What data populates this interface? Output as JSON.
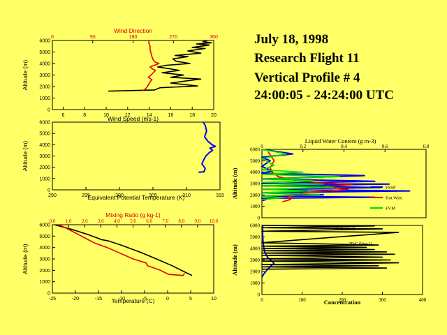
{
  "title_block": {
    "date": "July 18, 1998",
    "flight": "Research Flight 11",
    "profile": "Vertical Profile # 4",
    "time_range": "24:00:05 - 24:24:00 UTC"
  },
  "colors": {
    "background": "#ffff66",
    "red": "#e00000",
    "blue": "#0000ee",
    "green": "#00dd00",
    "black": "#000000"
  },
  "chart_data": [
    {
      "id": "wind",
      "type": "line",
      "title": "Wind Direction",
      "xlabel": "Wind Speed (ms-1)",
      "ylabel": "Altitude (m)",
      "xlim": [
        5,
        20
      ],
      "ylim": [
        0,
        6000
      ],
      "xticks": [
        6,
        8,
        10,
        12,
        14,
        16,
        18,
        20
      ],
      "yticks": [
        0,
        1000,
        2000,
        3000,
        4000,
        5000,
        6000
      ],
      "top_axis": {
        "lim": [
          0,
          360
        ],
        "ticks": [
          0,
          90,
          180,
          270,
          360
        ]
      },
      "series": [
        {
          "name": "Wind Speed",
          "color": "#000000",
          "axis": "bottom",
          "x": [
            10.2,
            14.5,
            15.0,
            18.5,
            16.0,
            17.5,
            18.8,
            16.0,
            17.2,
            15.2,
            16.8,
            15.5,
            14.8,
            15.6,
            17.8,
            16.5,
            16.2,
            17.6,
            16.4,
            18.8,
            17.6,
            19.2,
            18.0,
            19.6,
            18.4,
            19.8,
            19.0,
            19.4
          ],
          "y": [
            1600,
            1700,
            1900,
            2050,
            2300,
            2500,
            2650,
            2800,
            3000,
            3200,
            3400,
            3600,
            3700,
            3850,
            4000,
            4200,
            4400,
            4600,
            4700,
            4900,
            5100,
            5300,
            5400,
            5600,
            5700,
            5800,
            5900,
            6000
          ]
        },
        {
          "name": "Wind Direction",
          "color": "#e00000",
          "axis": "top",
          "x": [
            200,
            208,
            212,
            215,
            218,
            222,
            214,
            220,
            225,
            230,
            222,
            218,
            224,
            232,
            238,
            230,
            225,
            222,
            220,
            218,
            218,
            215,
            216
          ],
          "y": [
            1600,
            1800,
            2000,
            2200,
            2400,
            2600,
            2800,
            3000,
            3200,
            3400,
            3550,
            3700,
            3800,
            3900,
            4000,
            4100,
            4300,
            4600,
            4900,
            5200,
            5500,
            5800,
            6000
          ]
        }
      ]
    },
    {
      "id": "theta_e",
      "type": "line",
      "xlabel": "Equivalent Potential Temperature (K)",
      "ylabel": "Altitude (m)",
      "xlim": [
        290,
        315
      ],
      "ylim": [
        0,
        6000
      ],
      "xticks": [
        290,
        295,
        300,
        305,
        310,
        315
      ],
      "yticks": [
        0,
        1000,
        2000,
        3000,
        4000,
        5000,
        6000
      ],
      "series": [
        {
          "name": "Theta-E",
          "color": "#0000ee",
          "x": [
            311.8,
            312.6,
            312.8,
            312.3,
            312.6,
            312.9,
            313.4,
            313.9,
            313.5,
            314.3,
            313.8,
            313.2,
            312.7,
            313.0,
            312.8,
            312.5
          ],
          "y": [
            1550,
            1600,
            1900,
            2300,
            2700,
            3000,
            3300,
            3500,
            3700,
            3850,
            4000,
            4300,
            4700,
            5200,
            5700,
            6000
          ]
        }
      ]
    },
    {
      "id": "temp_mr",
      "type": "line",
      "xlabel": "Temperature (C)",
      "ylabel": "Altitude (m)",
      "xlim": [
        -25,
        10
      ],
      "ylim": [
        0,
        6000
      ],
      "xticks": [
        -25,
        -20,
        -15,
        -10,
        -5,
        0,
        5,
        10
      ],
      "yticks": [
        0,
        1000,
        2000,
        3000,
        4000,
        5000,
        6000
      ],
      "top_axis": {
        "label": "Mixing Ratio (g kg-1)",
        "lim": [
          0,
          10
        ],
        "ticks": [
          0.0,
          1.0,
          2.0,
          3.0,
          4.0,
          5.0,
          6.0,
          7.0,
          8.0,
          9.0,
          10.0
        ]
      },
      "series": [
        {
          "name": "Temperature",
          "color": "#000000",
          "axis": "bottom",
          "x": [
            -24.5,
            -20,
            -17,
            -15,
            -14.5,
            -13,
            -10,
            -6,
            -3,
            1,
            4,
            5.3
          ],
          "y": [
            6000,
            5500,
            5100,
            4800,
            4700,
            4600,
            4200,
            3600,
            3100,
            2400,
            1800,
            1550
          ]
        },
        {
          "name": "Mixing Ratio",
          "color": "#e00000",
          "axis": "top",
          "x": [
            0.4,
            1.0,
            1.8,
            2.6,
            3.4,
            4.2,
            5.0,
            5.8,
            5.9,
            6.7,
            7.2,
            8.1,
            8.2
          ],
          "y": [
            6000,
            5600,
            5000,
            4400,
            4000,
            3500,
            3000,
            2650,
            2400,
            2000,
            1650,
            1550,
            1750
          ]
        }
      ]
    },
    {
      "id": "lwc",
      "type": "line",
      "title": "Liquid Water Content (g m-3)",
      "ylabel": "Altitude (m)",
      "xlim": [
        0,
        0.8
      ],
      "ylim": [
        0,
        6000
      ],
      "xticks": [
        0,
        0.2,
        0.4,
        0.6,
        0.8
      ],
      "xticklabels": [
        "0",
        "0.2",
        "0.4",
        "0.6",
        "0.8"
      ],
      "yticks": [
        0,
        1000,
        2000,
        3000,
        4000,
        5000,
        6000
      ],
      "legend": [
        "FSSP",
        "Hot Wire",
        "FVM"
      ],
      "series": [
        {
          "name": "FSSP",
          "color": "#0000ee",
          "x": [
            0,
            0.02,
            0,
            0.55,
            0,
            0.3,
            0,
            0.72,
            0,
            0.58,
            0,
            0.62,
            0,
            0.55,
            0,
            0.5,
            0,
            0.05,
            0,
            0.04,
            0,
            0.15,
            0
          ],
          "y": [
            1500,
            1600,
            1700,
            1800,
            1900,
            2000,
            2200,
            2350,
            2500,
            2650,
            2800,
            2950,
            3000,
            3200,
            3400,
            3700,
            3900,
            4100,
            4500,
            5000,
            5300,
            5600,
            6000
          ]
        },
        {
          "name": "Hot Wire",
          "color": "#e00000",
          "x": [
            0.1,
            0.14,
            0.12,
            0.17,
            0.2,
            0.42,
            0.3,
            0.44,
            0.36,
            0.18,
            0.08,
            0.05,
            0.04,
            0.06,
            0.03
          ],
          "y": [
            1400,
            1600,
            1800,
            2000,
            2200,
            2500,
            2700,
            2900,
            3000,
            3200,
            3600,
            4000,
            4400,
            5000,
            5800
          ]
        },
        {
          "name": "FVM",
          "color": "#00dd00",
          "x": [
            0,
            0.1,
            0,
            0.28,
            0,
            0.22,
            0,
            0.35,
            0,
            0.3,
            0,
            0.25,
            0,
            0.38,
            0,
            0.2,
            0,
            0.06,
            0,
            0.12,
            0
          ],
          "y": [
            1600,
            1750,
            1900,
            2050,
            2200,
            2350,
            2500,
            2650,
            2800,
            2950,
            3100,
            3250,
            3400,
            3600,
            3800,
            4000,
            4200,
            4600,
            5200,
            5600,
            6000
          ]
        }
      ]
    },
    {
      "id": "concentration",
      "type": "line",
      "xlabel": "Concentration",
      "ylabel": "Altitude (m)",
      "xlim": [
        0,
        400
      ],
      "ylim": [
        0,
        6000
      ],
      "xticks": [
        0,
        100,
        200,
        300,
        400
      ],
      "yticks": [
        0,
        1000,
        2000,
        3000,
        4000,
        5000,
        6000
      ],
      "annotations": [
        "FSSP (cm-3)",
        "2D-C (liter-1)"
      ],
      "series": [
        {
          "name": "FSSP (cm-3)",
          "color": "#0000ee",
          "x": [
            0,
            5,
            12,
            20,
            30,
            25,
            15,
            8,
            5,
            3,
            2,
            2
          ],
          "y": [
            1500,
            1800,
            2100,
            2400,
            2700,
            2900,
            3200,
            3600,
            4000,
            4600,
            5200,
            6000
          ]
        },
        {
          "name": "2D-C (liter-1)",
          "color": "#000000",
          "x": [
            0,
            310,
            0,
            290,
            0,
            340,
            0,
            320,
            0,
            300,
            0,
            330,
            0,
            310,
            0,
            280,
            0,
            260,
            0,
            290,
            0,
            340,
            0,
            300,
            0,
            280,
            0
          ],
          "y": [
            2200,
            2300,
            2400,
            2500,
            2600,
            2750,
            2900,
            3000,
            3100,
            3250,
            3400,
            3500,
            3600,
            3700,
            3800,
            3900,
            4000,
            4100,
            4200,
            4300,
            4500,
            5400,
            5500,
            5700,
            5800,
            5950,
            6000
          ]
        }
      ]
    }
  ]
}
